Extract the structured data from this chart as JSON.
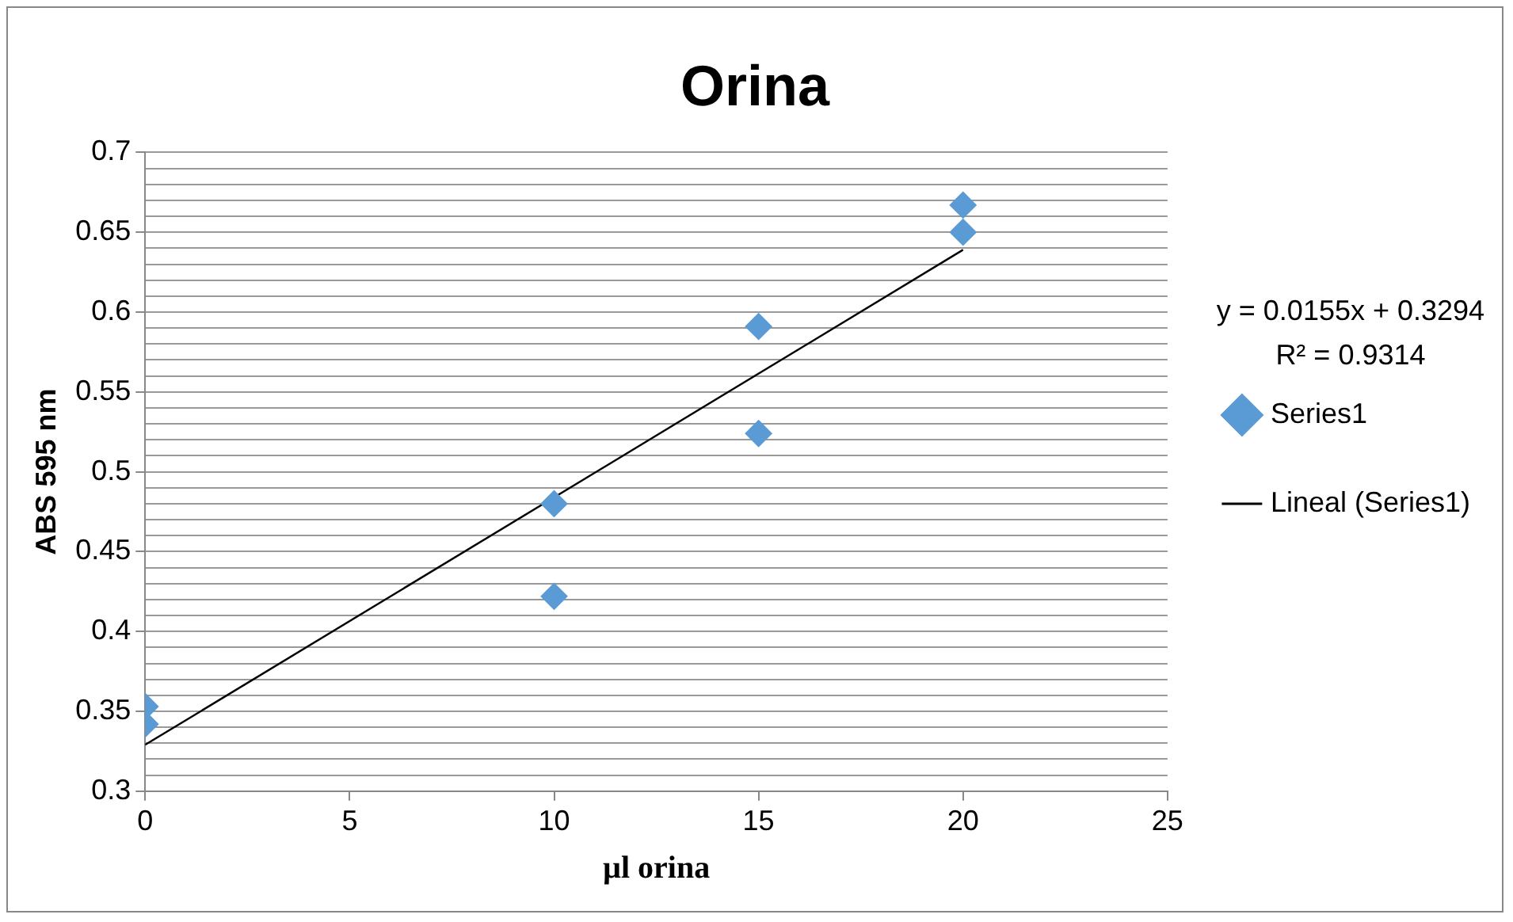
{
  "chart_data": {
    "type": "scatter",
    "title": "Orina",
    "xlabel": "µl orina",
    "ylabel": "ABS 595 nm",
    "annotations": [
      "y = 0.0155x + 0.3294",
      "R² = 0.9314"
    ],
    "series": [
      {
        "name": "Series1",
        "color": "#5b9bd5",
        "marker": "diamond",
        "x": [
          0,
          0,
          10,
          10,
          15,
          15,
          20,
          20
        ],
        "values": [
          0.353,
          0.342,
          0.48,
          0.422,
          0.591,
          0.524,
          0.667,
          0.65
        ]
      },
      {
        "name": "Lineal (Series1)",
        "type": "line",
        "color": "#000000",
        "marker": "none",
        "line_style": "solid",
        "x": [
          0,
          20
        ],
        "values": [
          0.329,
          0.639
        ]
      }
    ],
    "xlim": [
      0,
      25
    ],
    "xticks": [
      0,
      5,
      10,
      15,
      20,
      25
    ],
    "ylim": [
      0.3,
      0.7
    ],
    "yticks": [
      0.3,
      {
        "value": 0.31,
        "label": null
      },
      {
        "value": 0.32,
        "label": null
      },
      {
        "value": 0.33,
        "label": null
      },
      {
        "value": 0.34,
        "label": null
      },
      0.35,
      {
        "value": 0.36,
        "label": null
      },
      {
        "value": 0.37,
        "label": null
      },
      {
        "value": 0.38,
        "label": null
      },
      {
        "value": 0.39,
        "label": null
      },
      0.4,
      {
        "value": 0.41,
        "label": null
      },
      {
        "value": 0.42,
        "label": null
      },
      {
        "value": 0.43,
        "label": null
      },
      {
        "value": 0.44,
        "label": null
      },
      0.45,
      {
        "value": 0.46,
        "label": null
      },
      {
        "value": 0.47,
        "label": null
      },
      {
        "value": 0.48,
        "label": null
      },
      {
        "value": 0.49,
        "label": null
      },
      0.5,
      {
        "value": 0.51,
        "label": null
      },
      {
        "value": 0.52,
        "label": null
      },
      {
        "value": 0.53,
        "label": null
      },
      {
        "value": 0.54,
        "label": null
      },
      0.55,
      {
        "value": 0.56,
        "label": null
      },
      {
        "value": 0.57,
        "label": null
      },
      {
        "value": 0.58,
        "label": null
      },
      {
        "value": 0.59,
        "label": null
      },
      0.6,
      {
        "value": 0.61,
        "label": null
      },
      {
        "value": 0.62,
        "label": null
      },
      {
        "value": 0.63,
        "label": null
      },
      {
        "value": 0.64,
        "label": null
      },
      0.65,
      {
        "value": 0.66,
        "label": null
      },
      {
        "value": 0.67,
        "label": null
      },
      {
        "value": 0.68,
        "label": null
      },
      {
        "value": 0.69,
        "label": null
      },
      0.7
    ],
    "grid": "y",
    "legend": "right"
  }
}
